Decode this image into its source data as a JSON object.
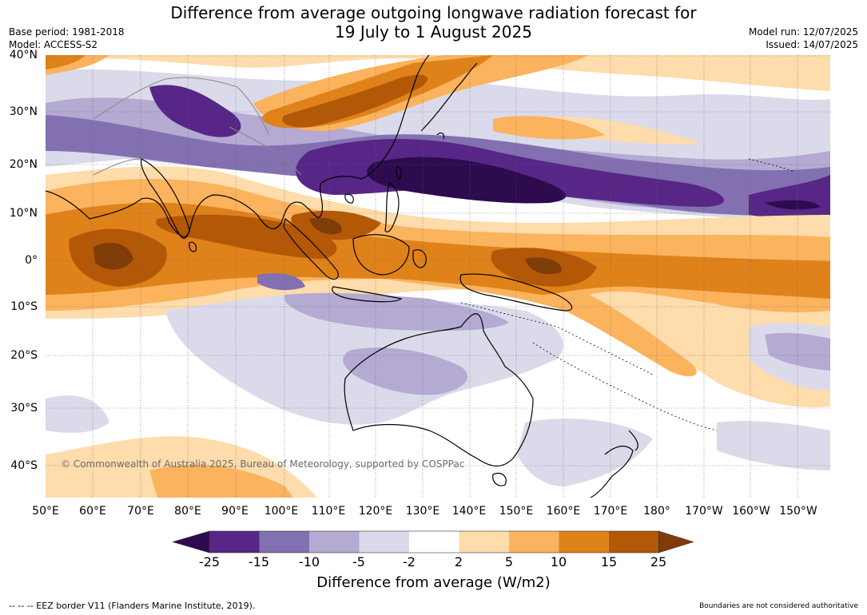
{
  "title": {
    "line1": "Difference from average outgoing longwave radiation forecast for",
    "line2": "19 July to 1 August 2025"
  },
  "meta_left": {
    "base_period": "Base period: 1981-2018",
    "model": "Model: ACCESS-S2"
  },
  "meta_right": {
    "model_run": "Model run: 12/07/2025",
    "issued": "Issued: 14/07/2025"
  },
  "map": {
    "lat_labels": [
      "40°N",
      "30°N",
      "20°N",
      "10°N",
      "0°",
      "10°S",
      "20°S",
      "30°S",
      "40°S"
    ],
    "lon_labels": [
      "50°E",
      "60°E",
      "70°E",
      "80°E",
      "90°E",
      "100°E",
      "110°E",
      "120°E",
      "130°E",
      "140°E",
      "150°E",
      "160°E",
      "170°E",
      "180°",
      "170°W",
      "160°W",
      "150°W"
    ],
    "copyright": "© Commonwealth of Australia 2025, Bureau of Meteorology, supported by COSPPac"
  },
  "colorbar": {
    "title": "Difference from average (W/m2)",
    "tick_labels": [
      "-25",
      "-15",
      "-10",
      "-5",
      "-2",
      "2",
      "5",
      "10",
      "15",
      "25"
    ],
    "colors": [
      "#2d0b4e",
      "#572687",
      "#8270b0",
      "#b4aad2",
      "#dadaeb",
      "#ffffff",
      "#fedcab",
      "#fbb35e",
      "#e0821a",
      "#b35806",
      "#7f3b08"
    ]
  },
  "footer": {
    "left": "--  --  -- EEZ border V11 (Flanders Marine Institute, 2019).",
    "right": "Boundaries are not considered authoritative"
  }
}
